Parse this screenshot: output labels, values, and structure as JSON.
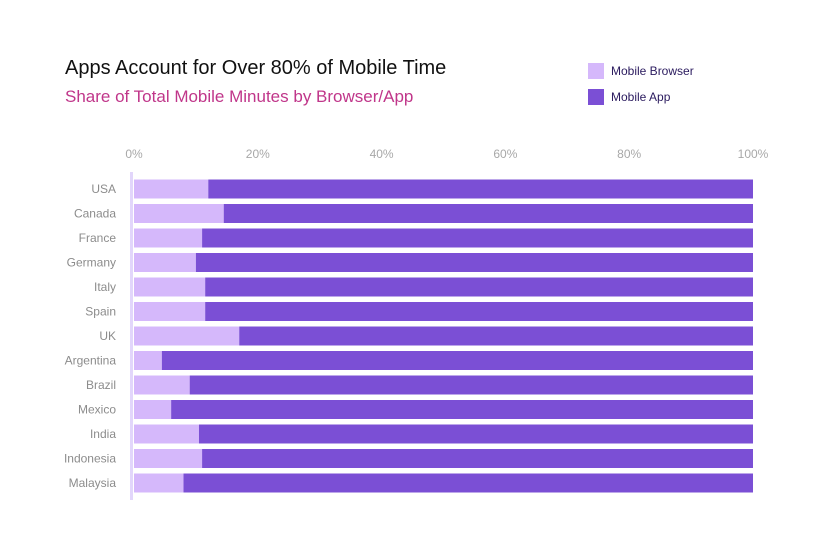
{
  "chart_data": {
    "type": "bar",
    "orientation": "horizontal",
    "stacked": true,
    "title": "Apps Account for Over 80% of Mobile Time",
    "subtitle": "Share of Total Mobile Minutes by Browser/App",
    "categories": [
      "USA",
      "Canada",
      "France",
      "Germany",
      "Italy",
      "Spain",
      "UK",
      "Argentina",
      "Brazil",
      "Mexico",
      "India",
      "Indonesia",
      "Malaysia"
    ],
    "series": [
      {
        "name": "Mobile Browser",
        "color": "#d5b8fb",
        "values": [
          12,
          14.5,
          11,
          10,
          11.5,
          11.5,
          17,
          4.5,
          9,
          6,
          10.5,
          11,
          8
        ]
      },
      {
        "name": "Mobile App",
        "color": "#7b4fd5",
        "values": [
          88,
          85.5,
          89,
          90,
          88.5,
          88.5,
          83,
          95.5,
          91,
          94,
          89.5,
          89,
          92
        ]
      }
    ],
    "x_ticks": [
      "0%",
      "20%",
      "40%",
      "60%",
      "80%",
      "100%"
    ],
    "xlim": [
      0,
      100
    ],
    "grid": false,
    "legend_position": "top-right"
  }
}
